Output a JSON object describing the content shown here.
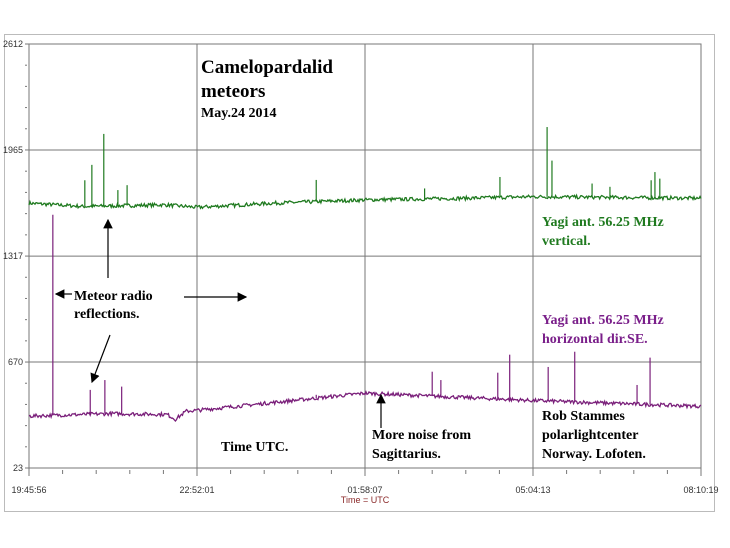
{
  "chart_data": {
    "type": "line",
    "title": "Camelopardalid",
    "title_line2": "meteors",
    "subtitle": "May.24 2014",
    "xlabel": "Time = UTC",
    "ylabel": "",
    "x_unit": "hours since 19:45:56",
    "xlim": [
      0,
      12.4
    ],
    "ylim": [
      23,
      2612
    ],
    "grid": true,
    "y_ticks": [
      {
        "value": 23,
        "label": "23"
      },
      {
        "value": 670,
        "label": "670"
      },
      {
        "value": 1317,
        "label": "1317"
      },
      {
        "value": 1965,
        "label": "1965"
      },
      {
        "value": 2612,
        "label": "2612"
      }
    ],
    "x_ticks": [
      {
        "value": 0,
        "label": "19:45:56"
      },
      {
        "value": 3.1,
        "label": "22:52:01"
      },
      {
        "value": 6.2,
        "label": "01:58:07"
      },
      {
        "value": 9.3,
        "label": "05:04:13"
      },
      {
        "value": 12.4,
        "label": "08:10:19"
      }
    ],
    "series": [
      {
        "name": "Yagi ant. 56.25 MHz vertical",
        "color": "#1f7a1f",
        "baseline": [
          [
            0,
            1640
          ],
          [
            1.0,
            1620
          ],
          [
            2.5,
            1630
          ],
          [
            3.1,
            1615
          ],
          [
            4.5,
            1640
          ],
          [
            6.2,
            1660
          ],
          [
            8.0,
            1670
          ],
          [
            9.3,
            1680
          ],
          [
            12.4,
            1670
          ]
        ],
        "spikes": [
          [
            1.03,
            1780
          ],
          [
            1.16,
            1874
          ],
          [
            1.38,
            2063
          ],
          [
            1.64,
            1720
          ],
          [
            1.81,
            1750
          ],
          [
            5.3,
            1782
          ],
          [
            7.3,
            1730
          ],
          [
            8.69,
            1800
          ],
          [
            9.56,
            2105
          ],
          [
            9.65,
            1900
          ],
          [
            10.39,
            1760
          ],
          [
            10.72,
            1740
          ],
          [
            11.48,
            1780
          ],
          [
            11.55,
            1830
          ],
          [
            11.64,
            1790
          ]
        ]
      },
      {
        "name": "Yagi ant. 56.25 MHz horizontal dir.SE.",
        "color": "#7a1f7a",
        "baseline": [
          [
            0,
            340
          ],
          [
            1.5,
            355
          ],
          [
            2.55,
            350
          ],
          [
            2.7,
            320
          ],
          [
            2.9,
            370
          ],
          [
            3.1,
            375
          ],
          [
            6.2,
            480
          ],
          [
            9.3,
            435
          ],
          [
            11.5,
            410
          ],
          [
            12.4,
            400
          ]
        ],
        "spikes": [
          [
            0.44,
            1569
          ],
          [
            1.13,
            500
          ],
          [
            1.4,
            560
          ],
          [
            1.71,
            520
          ],
          [
            5.3,
            470
          ],
          [
            7.44,
            611
          ],
          [
            7.6,
            560
          ],
          [
            8.65,
            605
          ],
          [
            8.87,
            715
          ],
          [
            9.58,
            640
          ],
          [
            10.07,
            733
          ],
          [
            11.22,
            530
          ],
          [
            11.46,
            697
          ]
        ]
      }
    ],
    "annotations": {
      "series1_label_line1": "Yagi ant. 56.25 MHz",
      "series1_label_line2": "vertical.",
      "series2_label_line1": "Yagi ant. 56.25 MHz",
      "series2_label_line2": "horizontal dir.SE.",
      "meteor_line1": "Meteor radio",
      "meteor_line2": "reflections.",
      "time_utc": "Time UTC.",
      "noise_line1": "More noise from",
      "noise_line2": "Sagittarius.",
      "credit_line1": "Rob Stammes",
      "credit_line2": "polarlightcenter",
      "credit_line3": "Norway. Lofoten."
    }
  }
}
